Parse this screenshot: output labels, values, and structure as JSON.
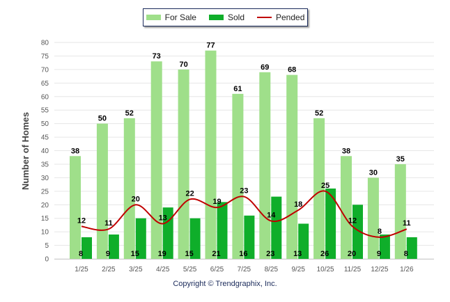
{
  "chart_data": {
    "type": "bar",
    "ylabel": "Number of Homes",
    "xlabel": "",
    "ylim": [
      0,
      80
    ],
    "ytick_step": 5,
    "grid": true,
    "legend_position": "top-center",
    "categories": [
      "1/25",
      "2/25",
      "3/25",
      "4/25",
      "5/25",
      "6/25",
      "7/25",
      "8/25",
      "9/25",
      "10/25",
      "11/25",
      "12/25",
      "1/26"
    ],
    "series": [
      {
        "name": "For Sale",
        "type": "bar",
        "color": "#9fdf8a",
        "values": [
          38,
          50,
          52,
          73,
          70,
          77,
          61,
          69,
          68,
          52,
          38,
          30,
          35
        ]
      },
      {
        "name": "Sold",
        "type": "bar",
        "color": "#0fae2a",
        "values": [
          8,
          9,
          15,
          19,
          15,
          21,
          16,
          23,
          13,
          26,
          20,
          9,
          8
        ]
      },
      {
        "name": "Pended",
        "type": "line",
        "color": "#c00000",
        "values": [
          12,
          11,
          20,
          13,
          22,
          19,
          23,
          14,
          18,
          25,
          12,
          8,
          11
        ]
      }
    ]
  },
  "footer": {
    "copyright": "Copyright © Trendgraphix, Inc."
  }
}
